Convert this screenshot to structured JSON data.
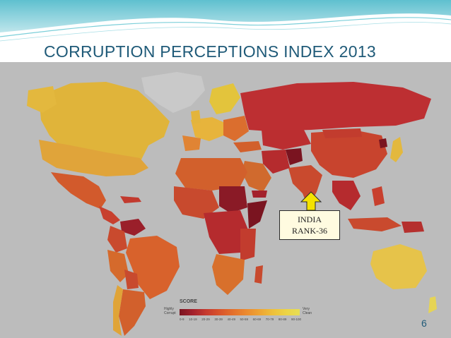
{
  "slide": {
    "title": "CORRUPTION PERCEPTIONS INDEX 2013",
    "page_number": "6"
  },
  "callout": {
    "line1": "INDIA",
    "line2": "RANK-36"
  },
  "legend": {
    "title": "SCORE",
    "low_label": "Highly Corrupt",
    "high_label": "Very Clean",
    "ticks": [
      "0-9",
      "10-19",
      "20-29",
      "30-39",
      "40-49",
      "50-59",
      "60-69",
      "70-79",
      "80-89",
      "90-100"
    ],
    "colors": [
      "#7a1420",
      "#a3212c",
      "#c63a2e",
      "#d9542c",
      "#e4702c",
      "#eb8a2f",
      "#eea433",
      "#eec13b",
      "#ecd446",
      "#e6de55"
    ]
  },
  "colors": {
    "accent": "#1f5a78",
    "ocean": "#bcbcbc",
    "no_data": "#c8c8c8"
  }
}
